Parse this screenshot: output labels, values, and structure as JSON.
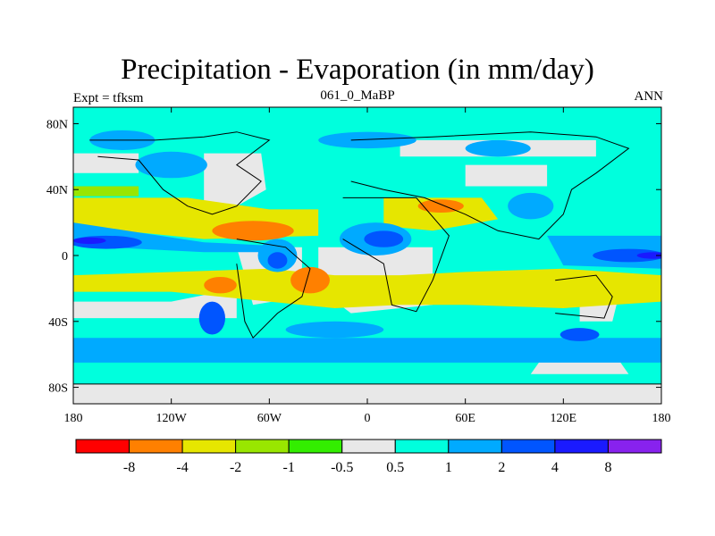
{
  "title": "Precipitation - Evaporation (in mm/day)",
  "left_label": "Expt = tfksm",
  "center_label": "061_0_MaBP",
  "right_label": "ANN",
  "x_ticks": [
    {
      "value": -180,
      "label": "180"
    },
    {
      "value": -120,
      "label": "120W"
    },
    {
      "value": -60,
      "label": "60W"
    },
    {
      "value": 0,
      "label": "0"
    },
    {
      "value": 60,
      "label": "60E"
    },
    {
      "value": 120,
      "label": "120E"
    },
    {
      "value": 180,
      "label": "180"
    }
  ],
  "y_ticks": [
    {
      "value": 80,
      "label": "80N"
    },
    {
      "value": 40,
      "label": "40N"
    },
    {
      "value": 0,
      "label": "0"
    },
    {
      "value": -40,
      "label": "40S"
    },
    {
      "value": -80,
      "label": "80S"
    }
  ],
  "colorbar": {
    "colors": [
      "#ff0000",
      "#ff8000",
      "#e6e600",
      "#99e600",
      "#33ee00",
      "#e8e8e8",
      "#00ffdd",
      "#00aaff",
      "#0055ff",
      "#1a1aff",
      "#8822ee"
    ],
    "labels": [
      "-8",
      "-4",
      "-2",
      "-1",
      "-0.5",
      "0.5",
      "1",
      "2",
      "4",
      "8"
    ]
  },
  "palette": {
    "ocean_gray": "#e8e8e8",
    "cyan": "#00ffdd",
    "light_blue": "#00aaff",
    "blue": "#0055ff",
    "deep_blue": "#1a1aff",
    "yellow": "#e6e600",
    "orange": "#ff8000",
    "yellow_green": "#99e600",
    "green": "#33ee00"
  }
}
